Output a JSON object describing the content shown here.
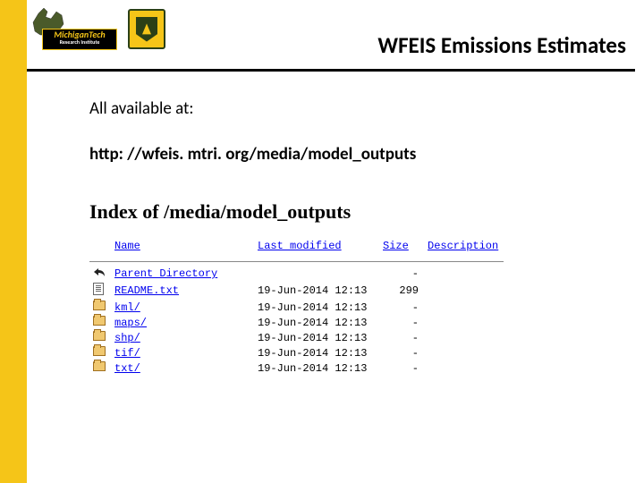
{
  "header": {
    "title": "WFEIS Emissions Estimates",
    "mich_logo": {
      "line1": "MichiganTech",
      "line2": "Research Institute"
    },
    "colors": {
      "accent": "#f5c518",
      "rule": "#000000"
    }
  },
  "body": {
    "intro": "All available at:",
    "url": "http: //wfeis. mtri. org/media/model_outputs"
  },
  "index": {
    "title": "Index of /media/model_outputs",
    "columns": {
      "name": "Name",
      "modified": "Last modified",
      "size": "Size",
      "desc": "Description"
    },
    "rows": [
      {
        "icon": "back",
        "name": "Parent Directory",
        "modified": "",
        "size": "-",
        "href": "#"
      },
      {
        "icon": "text",
        "name": "README.txt",
        "modified": "19-Jun-2014 12:13",
        "size": "299",
        "href": "#"
      },
      {
        "icon": "folder",
        "name": "kml/",
        "modified": "19-Jun-2014 12:13",
        "size": "-",
        "href": "#"
      },
      {
        "icon": "folder",
        "name": "maps/",
        "modified": "19-Jun-2014 12:13",
        "size": "-",
        "href": "#"
      },
      {
        "icon": "folder",
        "name": "shp/",
        "modified": "19-Jun-2014 12:13",
        "size": "-",
        "href": "#"
      },
      {
        "icon": "folder",
        "name": "tif/",
        "modified": "19-Jun-2014 12:13",
        "size": "-",
        "href": "#"
      },
      {
        "icon": "folder",
        "name": "txt/",
        "modified": "19-Jun-2014 12:13",
        "size": "-",
        "href": "#"
      }
    ]
  }
}
